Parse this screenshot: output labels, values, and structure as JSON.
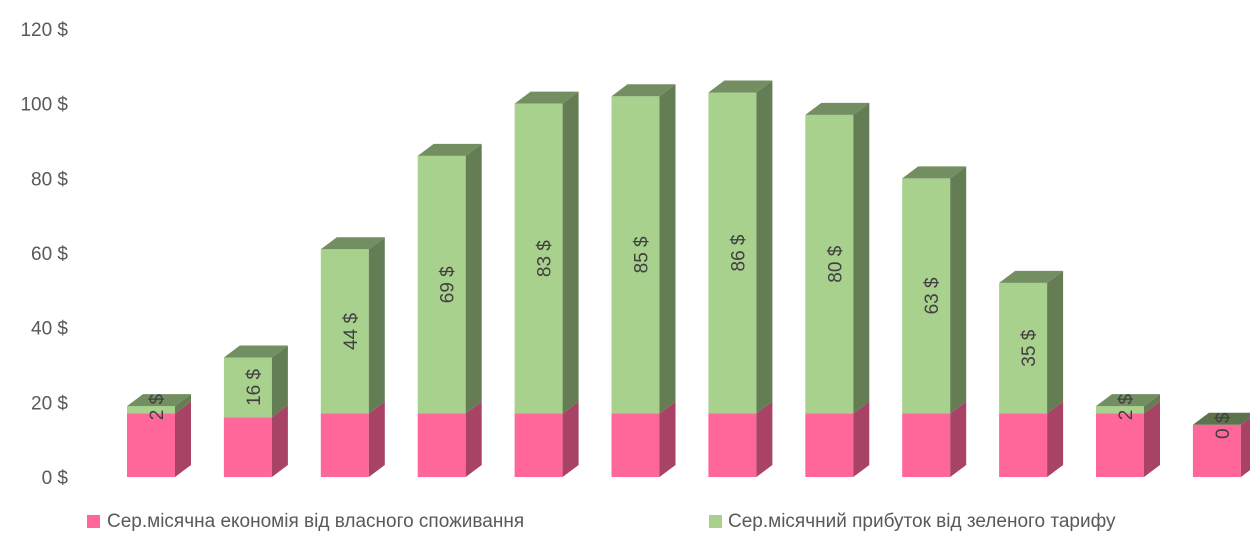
{
  "chart_data": {
    "type": "bar",
    "stacked": true,
    "three_d": true,
    "categories": [
      "",
      "",
      "",
      "",
      "",
      "",
      "",
      "",
      "",
      "",
      "",
      ""
    ],
    "series": [
      {
        "name": "Сер.місячна економія від власного споживання",
        "color": "#ff6699",
        "values": [
          17,
          16,
          17,
          17,
          17,
          17,
          17,
          17,
          17,
          17,
          17,
          14
        ]
      },
      {
        "name": "Сер.місячний прибуток від зеленого тарифу",
        "color": "#a9d18e",
        "values": [
          2,
          16,
          44,
          69,
          83,
          85,
          86,
          80,
          63,
          35,
          2,
          0
        ]
      }
    ],
    "data_labels": [
      "2 $",
      "16 $",
      "44 $",
      "69 $",
      "83 $",
      "85 $",
      "86 $",
      "80 $",
      "63 $",
      "35 $",
      "2 $",
      "0 $"
    ],
    "y_ticks": [
      "0 $",
      "20 $",
      "40 $",
      "60 $",
      "80 $",
      "100 $",
      "120 $"
    ],
    "ylim": [
      0,
      120
    ],
    "legend_position": "bottom",
    "grid": false
  }
}
